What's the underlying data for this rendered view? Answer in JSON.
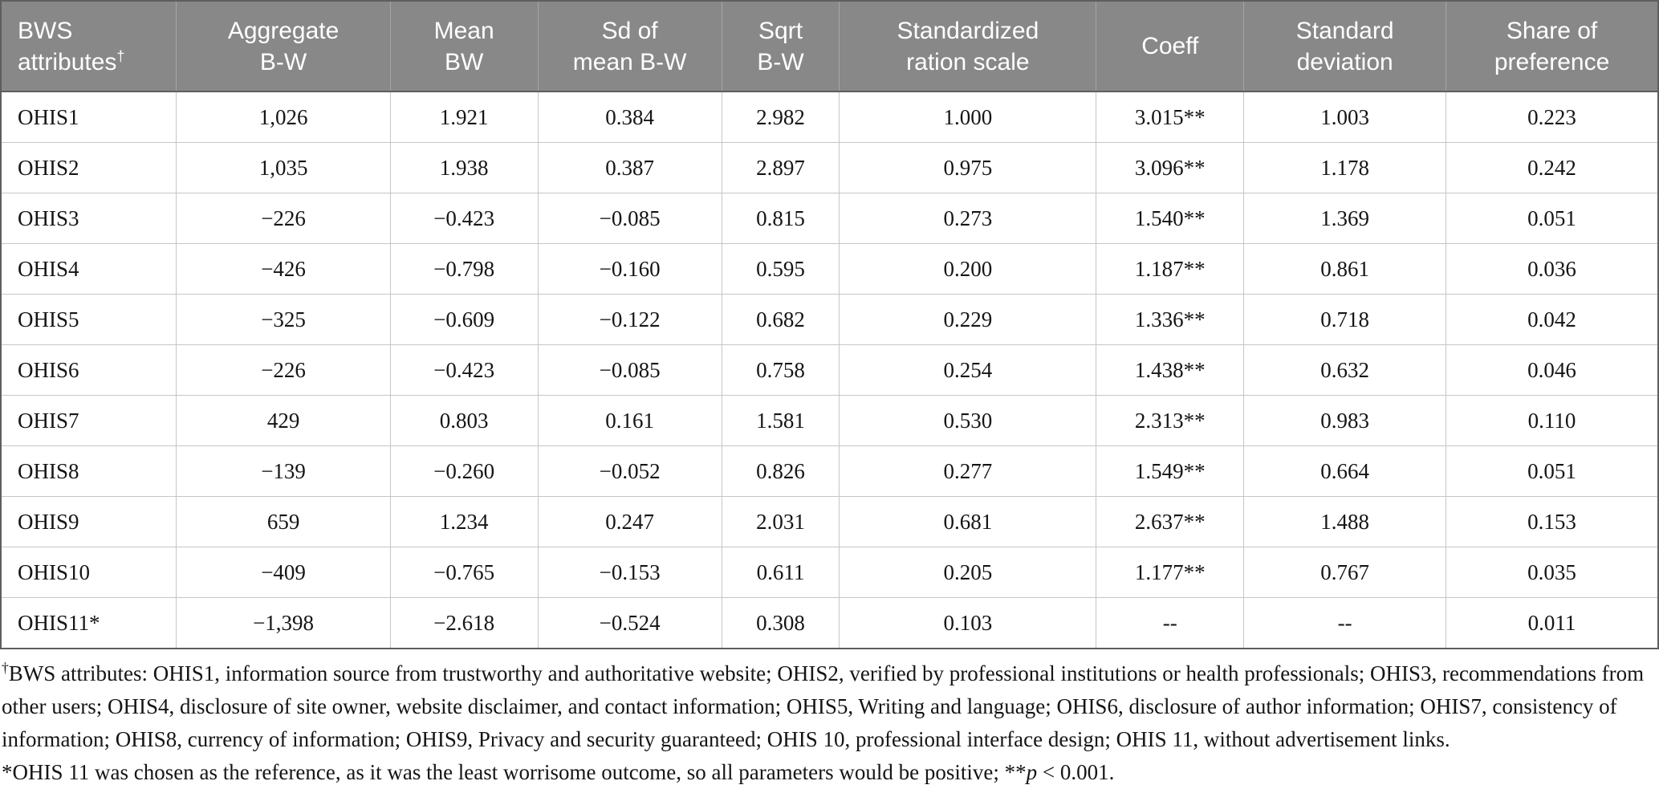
{
  "colors": {
    "header_bg": "#888888",
    "header_text": "#ffffff",
    "body_border": "#c6c6c6",
    "outer_border": "#5e5e5e"
  },
  "chart_data": {
    "type": "table",
    "title": "",
    "columns": [
      "BWS attributes†",
      "Aggregate B-W",
      "Mean BW",
      "Sd of mean B-W",
      "Sqrt B-W",
      "Standardized ration scale",
      "Coeff",
      "Standard deviation",
      "Share of preference"
    ],
    "rows": [
      [
        "OHIS1",
        "1,026",
        "1.921",
        "0.384",
        "2.982",
        "1.000",
        "3.015**",
        "1.003",
        "0.223"
      ],
      [
        "OHIS2",
        "1,035",
        "1.938",
        "0.387",
        "2.897",
        "0.975",
        "3.096**",
        "1.178",
        "0.242"
      ],
      [
        "OHIS3",
        "−226",
        "−0.423",
        "−0.085",
        "0.815",
        "0.273",
        "1.540**",
        "1.369",
        "0.051"
      ],
      [
        "OHIS4",
        "−426",
        "−0.798",
        "−0.160",
        "0.595",
        "0.200",
        "1.187**",
        "0.861",
        "0.036"
      ],
      [
        "OHIS5",
        "−325",
        "−0.609",
        "−0.122",
        "0.682",
        "0.229",
        "1.336**",
        "0.718",
        "0.042"
      ],
      [
        "OHIS6",
        "−226",
        "−0.423",
        "−0.085",
        "0.758",
        "0.254",
        "1.438**",
        "0.632",
        "0.046"
      ],
      [
        "OHIS7",
        "429",
        "0.803",
        "0.161",
        "1.581",
        "0.530",
        "2.313**",
        "0.983",
        "0.110"
      ],
      [
        "OHIS8",
        "−139",
        "−0.260",
        "−0.052",
        "0.826",
        "0.277",
        "1.549**",
        "0.664",
        "0.051"
      ],
      [
        "OHIS9",
        "659",
        "1.234",
        "0.247",
        "2.031",
        "0.681",
        "2.637**",
        "1.488",
        "0.153"
      ],
      [
        "OHIS10",
        "−409",
        "−0.765",
        "−0.153",
        "0.611",
        "0.205",
        "1.177**",
        "0.767",
        "0.035"
      ],
      [
        "OHIS11*",
        "−1,398",
        "−2.618",
        "−0.524",
        "0.308",
        "0.103",
        "--",
        "--",
        "0.011"
      ]
    ]
  },
  "table": {
    "headers": [
      {
        "lines": [
          "BWS",
          "attributes"
        ],
        "sup": "†"
      },
      {
        "lines": [
          "Aggregate",
          "B-W"
        ]
      },
      {
        "lines": [
          "Mean",
          "BW"
        ]
      },
      {
        "lines": [
          "Sd of",
          "mean B-W"
        ]
      },
      {
        "lines": [
          "Sqrt",
          "B-W"
        ]
      },
      {
        "lines": [
          "Standardized",
          "ration scale"
        ]
      },
      {
        "lines": [
          "Coeff"
        ]
      },
      {
        "lines": [
          "Standard",
          "deviation"
        ]
      },
      {
        "lines": [
          "Share of",
          "preference"
        ]
      }
    ]
  },
  "footnotes": [
    {
      "segments": [
        {
          "text": "†",
          "style": "sup"
        },
        {
          "text": "BWS attributes: OHIS1, information source from trustworthy and authoritative website; OHIS2, verified by professional institutions or health professionals; OHIS3, recommendations from other users; OHIS4, disclosure of site owner, website disclaimer, and contact information; OHIS5, Writing and language; OHIS6, disclosure of author information; OHIS7, consistency of information; OHIS8, currency of information; OHIS9, Privacy and security guaranteed; OHIS 10, professional interface design; OHIS 11, without advertisement links.",
          "style": "normal"
        }
      ]
    },
    {
      "segments": [
        {
          "text": "*OHIS 11 was chosen as the reference, as it was the least worrisome outcome, so all parameters would be positive; **",
          "style": "normal"
        },
        {
          "text": "p",
          "style": "italic"
        },
        {
          "text": " < 0.001.",
          "style": "normal"
        }
      ]
    }
  ]
}
